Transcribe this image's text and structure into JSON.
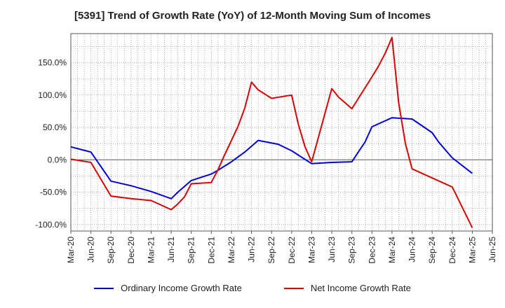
{
  "chart_data": {
    "type": "line",
    "title": "[5391]  Trend of Growth Rate (YoY) of 12-Month Moving Sum of Incomes",
    "xlabel": "",
    "ylabel": "",
    "x_tick_labels": [
      "Mar-20",
      "Jun-20",
      "Sep-20",
      "Dec-20",
      "Mar-21",
      "Jun-21",
      "Sep-21",
      "Dec-21",
      "Mar-22",
      "Jun-22",
      "Sep-22",
      "Dec-22",
      "Mar-23",
      "Jun-23",
      "Sep-23",
      "Dec-23",
      "Mar-24",
      "Jun-24",
      "Sep-24",
      "Dec-24",
      "Mar-25",
      "Jun-25"
    ],
    "y_ticks": [
      -100,
      -50,
      0,
      50,
      100,
      150
    ],
    "y_tick_labels": [
      "-100.0%",
      "-50.0%",
      "0.0%",
      "50.0%",
      "100.0%",
      "150.0%"
    ],
    "ylim": [
      -110,
      195
    ],
    "grid": true,
    "legend_position": "bottom",
    "series": [
      {
        "name": "Ordinary Income Growth Rate",
        "color": "#0000dd",
        "points": [
          [
            0,
            20
          ],
          [
            3,
            12
          ],
          [
            6,
            -33
          ],
          [
            9,
            -40
          ],
          [
            12,
            -49
          ],
          [
            15,
            -60
          ],
          [
            16,
            -50
          ],
          [
            18,
            -32
          ],
          [
            21,
            -22
          ],
          [
            22,
            -16
          ],
          [
            24,
            -3
          ],
          [
            26,
            12
          ],
          [
            27,
            21
          ],
          [
            28,
            30
          ],
          [
            31,
            24
          ],
          [
            33,
            14
          ],
          [
            36,
            -6
          ],
          [
            39,
            -4
          ],
          [
            42,
            -3
          ],
          [
            44,
            28
          ],
          [
            45,
            51
          ],
          [
            48,
            65
          ],
          [
            51,
            63
          ],
          [
            54,
            42
          ],
          [
            55,
            27
          ],
          [
            57,
            3
          ],
          [
            60,
            -21
          ]
        ]
      },
      {
        "name": "Net Income Growth Rate",
        "color": "#dd0000",
        "points": [
          [
            0,
            1
          ],
          [
            3,
            -4
          ],
          [
            6,
            -56
          ],
          [
            9,
            -60
          ],
          [
            12,
            -63
          ],
          [
            15,
            -77
          ],
          [
            16,
            -68
          ],
          [
            17,
            -57
          ],
          [
            18,
            -37
          ],
          [
            21,
            -35
          ],
          [
            22,
            -15
          ],
          [
            23,
            8
          ],
          [
            24,
            30
          ],
          [
            25,
            52
          ],
          [
            26,
            80
          ],
          [
            27,
            120
          ],
          [
            28,
            108
          ],
          [
            30,
            95
          ],
          [
            33,
            100
          ],
          [
            34,
            55
          ],
          [
            35,
            20
          ],
          [
            36,
            -3
          ],
          [
            39,
            110
          ],
          [
            40,
            97
          ],
          [
            42,
            79
          ],
          [
            45,
            128
          ],
          [
            46,
            145
          ],
          [
            47,
            165
          ],
          [
            48,
            189
          ],
          [
            49,
            88
          ],
          [
            50,
            25
          ],
          [
            51,
            -14
          ],
          [
            54,
            -28
          ],
          [
            57,
            -42
          ],
          [
            60,
            -105
          ]
        ]
      }
    ]
  }
}
